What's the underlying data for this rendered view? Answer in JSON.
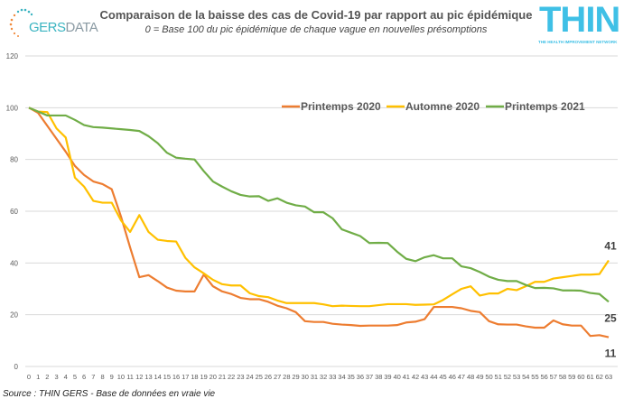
{
  "logos": {
    "left": "GERSDATA",
    "left_parts": [
      "GERS",
      "DATA"
    ],
    "right": "THIN",
    "right_sub": "THE HEALTH IMPROVEMENT NETWORK"
  },
  "source": "Source : THIN GERS - Base de données en vraie vie",
  "chart_data": {
    "type": "line",
    "title": "Comparaison de la baisse des cas de Covid-19 par rapport au pic épidémique",
    "subtitle": "0 = Base 100 du pic épidémique de chaque vague en nouvelles présomptions",
    "xlabel": "",
    "ylabel": "",
    "ylim": [
      0,
      120
    ],
    "yticks": [
      0,
      20,
      40,
      60,
      80,
      100,
      120
    ],
    "x": [
      0,
      1,
      2,
      3,
      4,
      5,
      6,
      7,
      8,
      9,
      10,
      11,
      12,
      13,
      14,
      15,
      16,
      17,
      18,
      19,
      20,
      21,
      22,
      23,
      24,
      25,
      26,
      27,
      28,
      29,
      30,
      31,
      32,
      33,
      34,
      35,
      36,
      37,
      38,
      39,
      40,
      41,
      42,
      43,
      44,
      45,
      46,
      47,
      48,
      49,
      50,
      51,
      52,
      53,
      54,
      55,
      56,
      57,
      58,
      59,
      60,
      61,
      62,
      63
    ],
    "grid": true,
    "legend": "top-right",
    "series": [
      {
        "name": "Printemps 2020",
        "color": "#ed7d31",
        "end_label": "11",
        "values": [
          100,
          98,
          93,
          88,
          83,
          77.5,
          74,
          71.5,
          70.5,
          68.5,
          58,
          46,
          34.5,
          35.3,
          33,
          30.5,
          29.3,
          29,
          29,
          35.5,
          31,
          29,
          28,
          26.5,
          26,
          26,
          25,
          23.5,
          22.5,
          21,
          17.5,
          17.2,
          17.2,
          16.5,
          16.2,
          16,
          15.7,
          15.8,
          15.8,
          15.8,
          16,
          17,
          17.3,
          18.3,
          23,
          23,
          23,
          22.5,
          21.5,
          21,
          17.5,
          16.3,
          16.2,
          16.2,
          15.5,
          15,
          15,
          17.8,
          16.3,
          15.8,
          15.8,
          11.8,
          12.1,
          11.3
        ]
      },
      {
        "name": "Automne 2020",
        "color": "#ffc000",
        "end_label": "41",
        "values": [
          100,
          98.5,
          98.3,
          92,
          88.5,
          73,
          69.5,
          64,
          63.3,
          63.3,
          56.5,
          52,
          58.5,
          52,
          49,
          48.5,
          48.3,
          42,
          38.3,
          36,
          33.5,
          31.8,
          31.3,
          31.3,
          28.3,
          27.2,
          26.8,
          25.5,
          24.5,
          24.5,
          24.5,
          24.5,
          24,
          23.3,
          23.5,
          23.4,
          23.3,
          23.3,
          23.7,
          24.1,
          24.1,
          24.1,
          23.8,
          23.9,
          24,
          25.7,
          27.9,
          30,
          31,
          27.4,
          28.2,
          28.2,
          30,
          29.5,
          31,
          32.7,
          32.7,
          34,
          34.5,
          35,
          35.5,
          35.5,
          35.7,
          41
        ]
      },
      {
        "name": "Printemps 2021",
        "color": "#70ad47",
        "end_label": "25",
        "values": [
          100,
          98.5,
          97,
          97,
          97,
          95.3,
          93.3,
          92.5,
          92.3,
          92,
          91.7,
          91.4,
          91,
          89,
          86.3,
          82.6,
          80.7,
          80.3,
          80,
          75.5,
          71.5,
          69.5,
          67.7,
          66.3,
          65.7,
          65.8,
          64,
          65,
          63.3,
          62.3,
          61.8,
          59.6,
          59.6,
          57.3,
          53,
          51.7,
          50.4,
          47.7,
          47.8,
          47.7,
          44.4,
          41.6,
          40.7,
          42.2,
          43,
          41.8,
          41.8,
          38.7,
          38,
          36.5,
          34.7,
          33.5,
          33,
          33,
          31.5,
          30.3,
          30.4,
          30.2,
          29.4,
          29.4,
          29.3,
          28.4,
          28,
          25
        ]
      }
    ]
  }
}
